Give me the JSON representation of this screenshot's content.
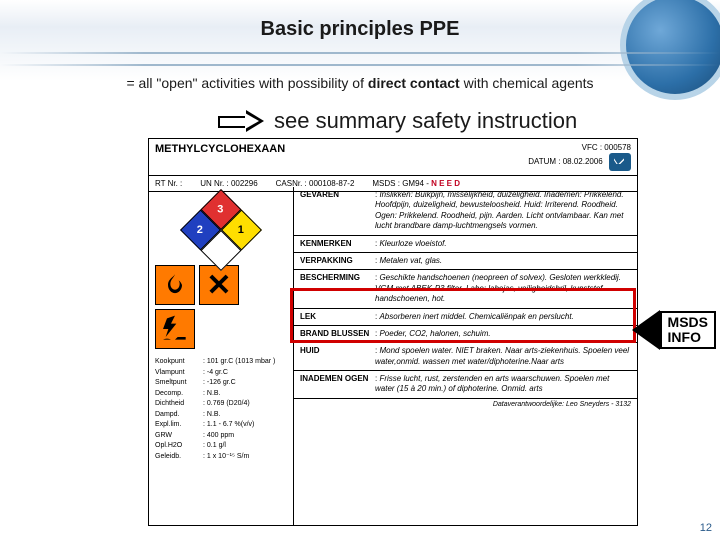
{
  "title": "Basic principles PPE",
  "subtitle_pre": "= all \"open\" activities with possibility of ",
  "subtitle_bold": "direct contact",
  "subtitle_post": " with chemical agents",
  "instruction": "see summary safety instruction",
  "page_number": "12",
  "msds_callout_line1": "MSDS",
  "msds_callout_line2": "INFO",
  "datasheet": {
    "chemical": "METHYLCYCLOHEXAAN",
    "vfc_label": "VFC",
    "vfc": "000578",
    "datum_label": "DATUM",
    "datum": "08.02.2006",
    "codes": {
      "rt_label": "RT Nr. :",
      "un_label": "UN Nr. :",
      "un": "002296",
      "cas_label": "CASNr. :",
      "cas": "000108-87-2",
      "msds_label": "MSDS",
      "msds": "GM94 -",
      "need": "N E E D"
    },
    "nfpa": {
      "health": "2",
      "fire": "3",
      "react": "1",
      "special": ""
    },
    "props": [
      {
        "k": "Kookpunt",
        "v": ": 101 gr.C (1013 mbar )"
      },
      {
        "k": "Vlampunt",
        "v": ": -4 gr.C"
      },
      {
        "k": "Smeltpunt",
        "v": ": -126 gr.C"
      },
      {
        "k": "Decomp.",
        "v": ": N.B."
      },
      {
        "k": "Dichtheid",
        "v": ": 0.769 (D20/4)"
      },
      {
        "k": "Dampd.",
        "v": ": N.B."
      },
      {
        "k": "Expl.lim.",
        "v": ": 1.1 - 6.7 %(v/v)"
      },
      {
        "k": "GRW",
        "v": ": 400 ppm"
      },
      {
        "k": "Opl.H2O",
        "v": ": 0.1 g/l"
      },
      {
        "k": "Geleidb.",
        "v": ": 1 x 10⁻¹⁵ S/m"
      }
    ],
    "sections": [
      {
        "lbl": "GEVAREN",
        "val": "Inslikken: Buikpijn, misselijkheid, duizeligheid. Inademen: Prikkelend. Hoofdpijn, duizeligheid, bewusteloosheid. Huid: Irriterend. Roodheid. Ogen: Prikkelend. Roodheid, pijn. Aarden. Licht ontvlambaar. Kan met lucht brandbare damp-luchtmengsels vormen."
      },
      {
        "lbl": "KENMERKEN",
        "val": "Kleurloze vloeistof."
      },
      {
        "lbl": "VERPAKKING",
        "val": "Metalen vat, glas."
      },
      {
        "lbl": "BESCHERMING",
        "val": "Geschikte handschoenen (neopreen of solvex). Gesloten werkkledij. VGM met ABEK-P3 filter. Labo: labojas, veiligheidsbril, kunststof handschoenen, hot."
      },
      {
        "lbl": "LEK",
        "val": "Absorberen inert middel. Chemicaliënpak en perslucht."
      },
      {
        "lbl": "BRAND BLUSSEN",
        "val": "Poeder, CO2, halonen, schuim."
      },
      {
        "lbl": "HUID",
        "val": "Mond spoelen water. NIET braken. Naar arts-ziekenhuis. Spoelen veel water,onmid. wassen met water/diphoterine.Naar arts"
      },
      {
        "lbl": "INADEMEN OGEN",
        "val": "Frisse lucht, rust, zerstenden en arts waarschuwen. Spoelen met water (15 à 20 min.) of diphoterine. Onmid. arts"
      }
    ],
    "footer": "Dataverantwoordelijke: Leo Sneyders - 3132"
  },
  "colors": {
    "accent": "#2a5a8a",
    "highlight": "#d00000",
    "hazard_orange": "#ff7a00"
  }
}
